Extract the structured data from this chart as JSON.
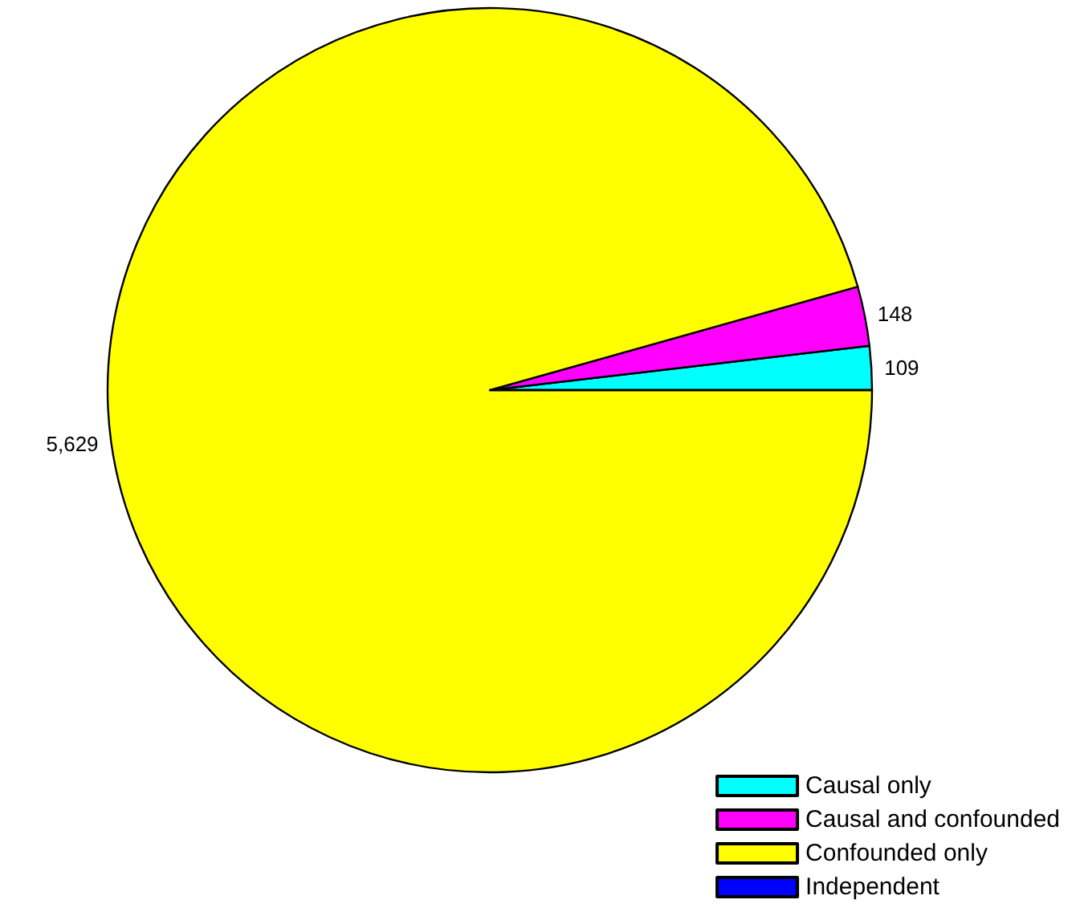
{
  "chart_data": {
    "type": "pie",
    "categories": [
      "Causal only",
      "Causal and confounded",
      "Confounded only",
      "Independent"
    ],
    "values": [
      109,
      148,
      5629,
      0
    ],
    "colors": [
      "#00ffff",
      "#ff00ff",
      "#ffff00",
      "#0000ff"
    ],
    "value_labels": [
      "109",
      "148",
      "5,629",
      null
    ],
    "legend": "bottom right"
  }
}
